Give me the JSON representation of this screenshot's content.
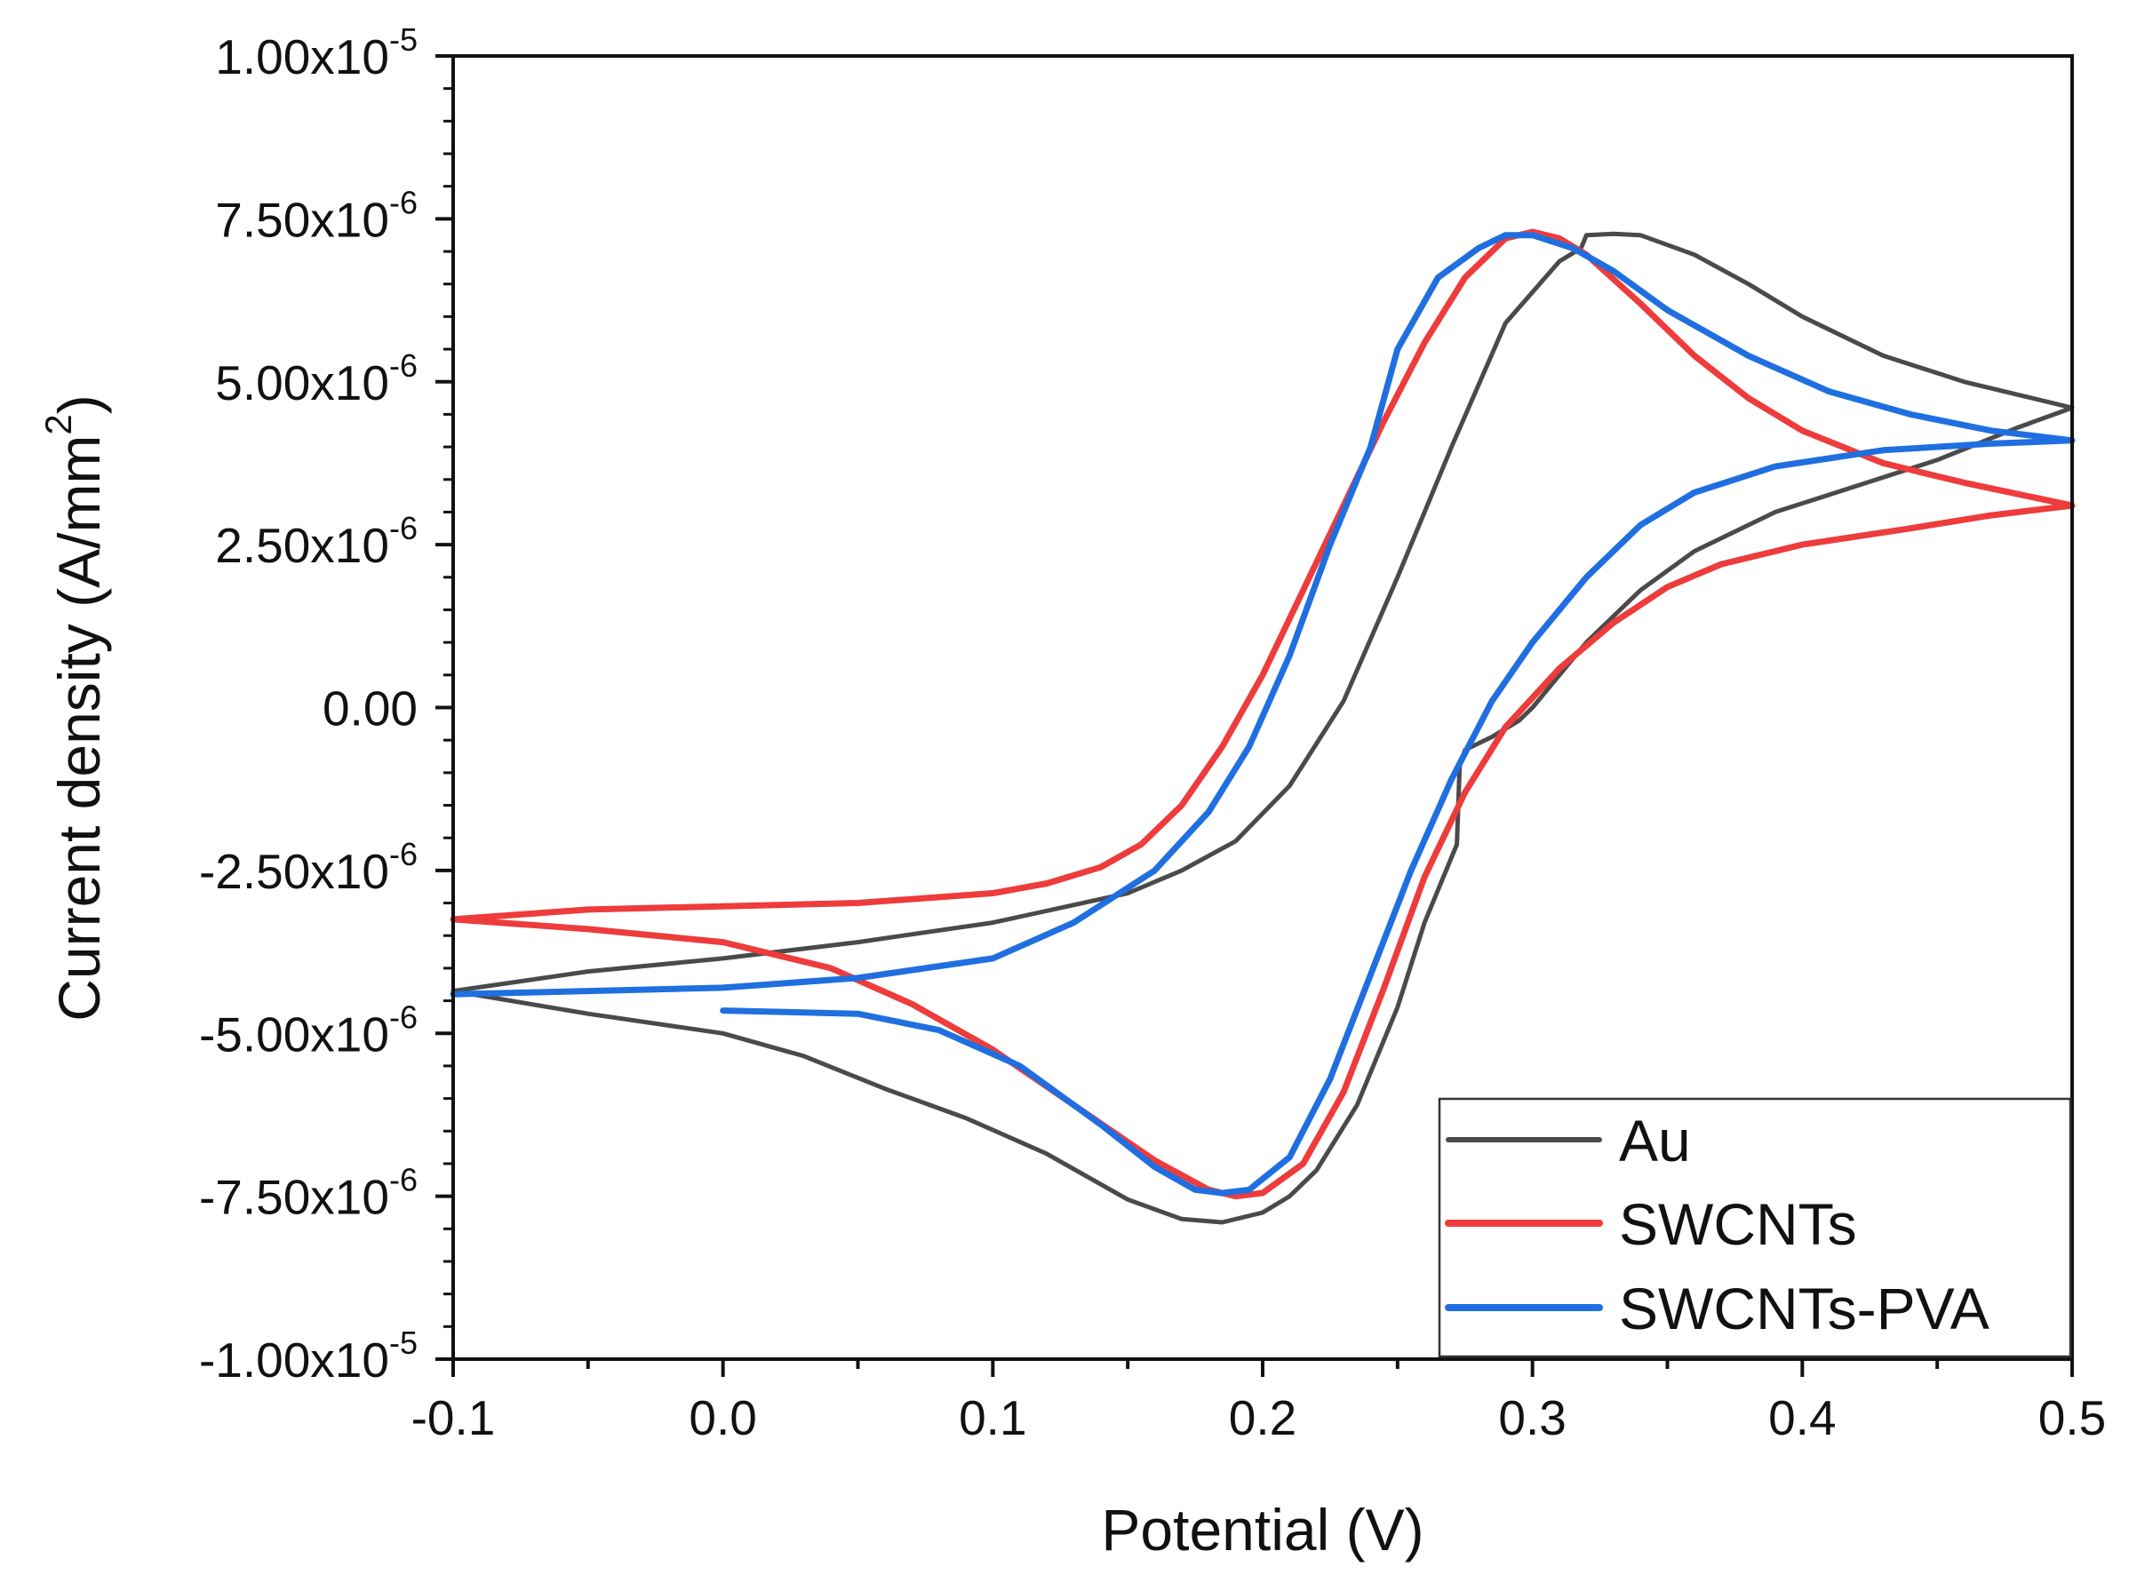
{
  "chart_data": {
    "type": "line",
    "title": "",
    "xlabel": "Potential (V)",
    "ylabel": "Current density (A/mm²)",
    "ylabel_main": "Current density (A/mm",
    "ylabel_sup": "2",
    "ylabel_close": ")",
    "xlim": [
      -0.1,
      0.5
    ],
    "ylim": [
      -1e-05,
      1e-05
    ],
    "x_ticks": [
      {
        "value": -0.1,
        "label": "-0.1"
      },
      {
        "value": 0.0,
        "label": "0.0"
      },
      {
        "value": 0.1,
        "label": "0.1"
      },
      {
        "value": 0.2,
        "label": "0.2"
      },
      {
        "value": 0.3,
        "label": "0.3"
      },
      {
        "value": 0.4,
        "label": "0.4"
      },
      {
        "value": 0.5,
        "label": "0.5"
      }
    ],
    "y_ticks": [
      {
        "value": 1e-05,
        "mantissa": "1.00x10",
        "exp": "-5"
      },
      {
        "value": 7.5e-06,
        "mantissa": "7.50x10",
        "exp": "-6"
      },
      {
        "value": 5e-06,
        "mantissa": "5.00x10",
        "exp": "-6"
      },
      {
        "value": 2.5e-06,
        "mantissa": "2.50x10",
        "exp": "-6"
      },
      {
        "value": 0,
        "mantissa": "0.00",
        "exp": ""
      },
      {
        "value": -2.5e-06,
        "mantissa": "-2.50x10",
        "exp": "-6"
      },
      {
        "value": -5e-06,
        "mantissa": "-5.00x10",
        "exp": "-6"
      },
      {
        "value": -7.5e-06,
        "mantissa": "-7.50x10",
        "exp": "-6"
      },
      {
        "value": -1e-05,
        "mantissa": "-1.00x10",
        "exp": "-5"
      }
    ],
    "y_unit": 1e-06,
    "grid": false,
    "legend_position": "bottom-right",
    "series": [
      {
        "name": "Au",
        "color": "#4a4a4a",
        "width": 5,
        "points": [
          [
            0.0,
            -5.0
          ],
          [
            -0.05,
            -4.7
          ],
          [
            -0.1,
            -4.35
          ],
          [
            -0.05,
            -4.05
          ],
          [
            0.0,
            -3.85
          ],
          [
            0.05,
            -3.6
          ],
          [
            0.1,
            -3.3
          ],
          [
            0.15,
            -2.85
          ],
          [
            0.17,
            -2.5
          ],
          [
            0.19,
            -2.05
          ],
          [
            0.21,
            -1.2
          ],
          [
            0.23,
            0.1
          ],
          [
            0.25,
            2.0
          ],
          [
            0.27,
            4.0
          ],
          [
            0.29,
            5.9
          ],
          [
            0.31,
            6.85
          ],
          [
            0.318,
            7.05
          ],
          [
            0.32,
            7.25
          ],
          [
            0.33,
            7.27
          ],
          [
            0.34,
            7.25
          ],
          [
            0.36,
            6.95
          ],
          [
            0.38,
            6.5
          ],
          [
            0.4,
            6.0
          ],
          [
            0.43,
            5.4
          ],
          [
            0.46,
            5.0
          ],
          [
            0.48,
            4.8
          ],
          [
            0.5,
            4.6
          ],
          [
            0.48,
            4.3
          ],
          [
            0.45,
            3.8
          ],
          [
            0.42,
            3.4
          ],
          [
            0.39,
            3.0
          ],
          [
            0.36,
            2.4
          ],
          [
            0.34,
            1.8
          ],
          [
            0.32,
            1.0
          ],
          [
            0.3,
            0.0
          ],
          [
            0.295,
            -0.2
          ],
          [
            0.285,
            -0.45
          ],
          [
            0.275,
            -0.65
          ],
          [
            0.273,
            -0.9
          ],
          [
            0.272,
            -2.1
          ],
          [
            0.26,
            -3.3
          ],
          [
            0.25,
            -4.6
          ],
          [
            0.235,
            -6.1
          ],
          [
            0.22,
            -7.1
          ],
          [
            0.21,
            -7.5
          ],
          [
            0.2,
            -7.75
          ],
          [
            0.185,
            -7.9
          ],
          [
            0.17,
            -7.85
          ],
          [
            0.15,
            -7.55
          ],
          [
            0.12,
            -6.85
          ],
          [
            0.09,
            -6.3
          ],
          [
            0.06,
            -5.85
          ],
          [
            0.03,
            -5.35
          ],
          [
            0.0,
            -5.0
          ]
        ]
      },
      {
        "name": "SWCNTs",
        "color": "#ee3b3b",
        "width": 7,
        "points": [
          [
            0.0,
            -3.6
          ],
          [
            -0.05,
            -3.4
          ],
          [
            -0.1,
            -3.25
          ],
          [
            -0.05,
            -3.1
          ],
          [
            0.0,
            -3.05
          ],
          [
            0.05,
            -3.0
          ],
          [
            0.1,
            -2.85
          ],
          [
            0.12,
            -2.7
          ],
          [
            0.14,
            -2.45
          ],
          [
            0.155,
            -2.1
          ],
          [
            0.17,
            -1.5
          ],
          [
            0.185,
            -0.6
          ],
          [
            0.2,
            0.5
          ],
          [
            0.215,
            1.8
          ],
          [
            0.23,
            3.1
          ],
          [
            0.245,
            4.4
          ],
          [
            0.26,
            5.6
          ],
          [
            0.275,
            6.6
          ],
          [
            0.29,
            7.2
          ],
          [
            0.3,
            7.3
          ],
          [
            0.31,
            7.2
          ],
          [
            0.32,
            6.95
          ],
          [
            0.34,
            6.2
          ],
          [
            0.36,
            5.4
          ],
          [
            0.38,
            4.75
          ],
          [
            0.4,
            4.25
          ],
          [
            0.43,
            3.75
          ],
          [
            0.46,
            3.45
          ],
          [
            0.5,
            3.1
          ],
          [
            0.47,
            2.95
          ],
          [
            0.44,
            2.75
          ],
          [
            0.4,
            2.5
          ],
          [
            0.37,
            2.2
          ],
          [
            0.35,
            1.85
          ],
          [
            0.33,
            1.3
          ],
          [
            0.31,
            0.6
          ],
          [
            0.29,
            -0.3
          ],
          [
            0.275,
            -1.3
          ],
          [
            0.26,
            -2.6
          ],
          [
            0.245,
            -4.3
          ],
          [
            0.23,
            -5.9
          ],
          [
            0.215,
            -7.0
          ],
          [
            0.2,
            -7.45
          ],
          [
            0.19,
            -7.5
          ],
          [
            0.18,
            -7.4
          ],
          [
            0.16,
            -6.95
          ],
          [
            0.13,
            -6.1
          ],
          [
            0.1,
            -5.25
          ],
          [
            0.07,
            -4.55
          ],
          [
            0.04,
            -4.0
          ],
          [
            0.0,
            -3.6
          ]
        ]
      },
      {
        "name": "SWCNTs-PVA",
        "color": "#1f6fe0",
        "width": 7,
        "points": [
          [
            0.0,
            -4.65
          ],
          [
            0.05,
            -4.7
          ],
          [
            0.08,
            -4.95
          ],
          [
            0.11,
            -5.5
          ],
          [
            0.14,
            -6.4
          ],
          [
            0.16,
            -7.05
          ],
          [
            0.175,
            -7.4
          ],
          [
            0.185,
            -7.45
          ],
          [
            0.195,
            -7.4
          ],
          [
            0.21,
            -6.9
          ],
          [
            0.225,
            -5.7
          ],
          [
            0.24,
            -4.1
          ],
          [
            0.255,
            -2.5
          ],
          [
            0.27,
            -1.1
          ],
          [
            0.285,
            0.1
          ],
          [
            0.3,
            1.0
          ],
          [
            0.32,
            2.0
          ],
          [
            0.34,
            2.8
          ],
          [
            0.36,
            3.3
          ],
          [
            0.39,
            3.7
          ],
          [
            0.43,
            3.95
          ],
          [
            0.47,
            4.05
          ],
          [
            0.5,
            4.1
          ],
          [
            0.47,
            4.25
          ],
          [
            0.44,
            4.5
          ],
          [
            0.41,
            4.85
          ],
          [
            0.38,
            5.4
          ],
          [
            0.35,
            6.1
          ],
          [
            0.33,
            6.7
          ],
          [
            0.315,
            7.05
          ],
          [
            0.3,
            7.25
          ],
          [
            0.29,
            7.25
          ],
          [
            0.28,
            7.05
          ],
          [
            0.265,
            6.6
          ],
          [
            0.25,
            5.5
          ],
          [
            0.24,
            4.0
          ],
          [
            0.225,
            2.5
          ],
          [
            0.21,
            0.8
          ],
          [
            0.195,
            -0.6
          ],
          [
            0.18,
            -1.6
          ],
          [
            0.16,
            -2.5
          ],
          [
            0.13,
            -3.3
          ],
          [
            0.1,
            -3.85
          ],
          [
            0.05,
            -4.15
          ],
          [
            0.0,
            -4.3
          ],
          [
            -0.05,
            -4.35
          ],
          [
            -0.1,
            -4.4
          ]
        ]
      }
    ]
  }
}
